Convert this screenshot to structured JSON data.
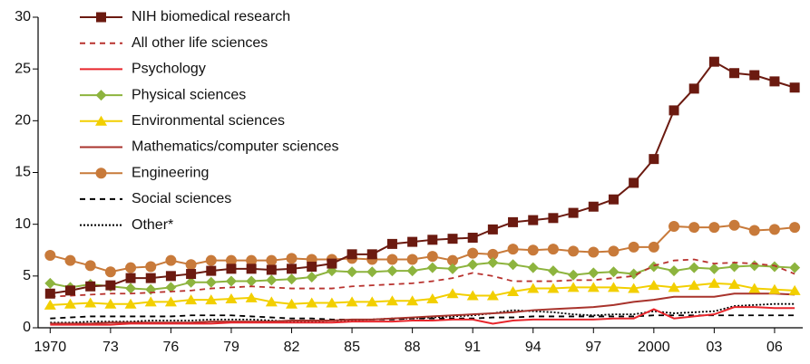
{
  "chart_data": {
    "type": "line",
    "x": [
      1970,
      1971,
      1972,
      1973,
      1974,
      1975,
      1976,
      1977,
      1978,
      1979,
      1980,
      1981,
      1982,
      1983,
      1984,
      1985,
      1986,
      1987,
      1988,
      1989,
      1990,
      1991,
      1992,
      1993,
      1994,
      1995,
      1996,
      1997,
      1998,
      1999,
      2000,
      2001,
      2002,
      2003,
      2004,
      2005,
      2006,
      2007
    ],
    "xlim": [
      1969.4,
      2007.4
    ],
    "xticks": [
      1970,
      {
        "value": 1973,
        "label": "73"
      },
      {
        "value": 1976,
        "label": "76"
      },
      {
        "value": 1979,
        "label": "79"
      },
      {
        "value": 1982,
        "label": "82"
      },
      {
        "value": 1985,
        "label": "85"
      },
      {
        "value": 1988,
        "label": "88"
      },
      {
        "value": 1991,
        "label": "91"
      },
      {
        "value": 1994,
        "label": "94"
      },
      {
        "value": 1997,
        "label": "97"
      },
      2000,
      {
        "value": 2003,
        "label": "03"
      },
      {
        "value": 2006,
        "label": "06"
      }
    ],
    "ylim": [
      0,
      30
    ],
    "yticks": [
      0,
      5,
      10,
      15,
      20,
      25,
      30
    ],
    "legend": "top-left",
    "series": [
      {
        "name": "NIH biomedical research",
        "color": "#6b1a10",
        "dash": "solid",
        "marker": "square",
        "values": [
          3.3,
          3.6,
          4.0,
          4.1,
          4.8,
          4.8,
          5.0,
          5.2,
          5.5,
          5.7,
          5.7,
          5.6,
          5.7,
          5.9,
          6.2,
          7.1,
          7.1,
          8.1,
          8.3,
          8.5,
          8.6,
          8.7,
          9.5,
          10.2,
          10.4,
          10.6,
          11.1,
          11.7,
          12.4,
          14.0,
          16.3,
          21.0,
          23.1,
          25.7,
          24.6,
          24.4,
          23.8,
          23.2
        ]
      },
      {
        "name": "All other life sciences",
        "color": "#b8322e",
        "dash": "dashed",
        "marker": "none",
        "values": [
          3.0,
          3.1,
          3.2,
          3.3,
          3.3,
          3.4,
          3.5,
          3.6,
          3.8,
          3.9,
          4.0,
          3.9,
          3.8,
          3.8,
          3.8,
          4.0,
          4.1,
          4.2,
          4.3,
          4.5,
          4.8,
          5.3,
          5.0,
          4.5,
          4.5,
          4.5,
          4.6,
          4.6,
          4.8,
          5.0,
          6.0,
          6.5,
          6.6,
          6.2,
          6.3,
          6.2,
          6.0,
          5.2
        ]
      },
      {
        "name": "Psychology",
        "color": "#e8262c",
        "dash": "solid",
        "marker": "none",
        "values": [
          0.3,
          0.3,
          0.3,
          0.3,
          0.4,
          0.4,
          0.4,
          0.4,
          0.4,
          0.5,
          0.5,
          0.5,
          0.5,
          0.5,
          0.5,
          0.6,
          0.6,
          0.6,
          0.7,
          0.7,
          0.8,
          0.8,
          0.4,
          0.7,
          0.8,
          0.8,
          0.8,
          0.8,
          0.9,
          0.9,
          1.8,
          0.9,
          1.1,
          1.3,
          2.0,
          2.0,
          1.9,
          1.9
        ]
      },
      {
        "name": "Physical sciences",
        "color": "#8db43e",
        "dash": "solid",
        "marker": "diamond",
        "values": [
          4.3,
          3.9,
          4.2,
          4.0,
          3.8,
          3.7,
          3.9,
          4.4,
          4.4,
          4.5,
          4.5,
          4.6,
          4.7,
          4.9,
          5.5,
          5.4,
          5.4,
          5.5,
          5.5,
          5.8,
          5.7,
          6.1,
          6.3,
          6.1,
          5.8,
          5.5,
          5.1,
          5.3,
          5.4,
          5.2,
          5.9,
          5.5,
          5.8,
          5.7,
          5.9,
          6.0,
          5.9,
          5.8
        ]
      },
      {
        "name": "Environmental sciences",
        "color": "#f2cf00",
        "dash": "solid",
        "marker": "triangle",
        "values": [
          2.2,
          2.3,
          2.4,
          2.3,
          2.3,
          2.5,
          2.5,
          2.7,
          2.7,
          2.8,
          2.9,
          2.5,
          2.3,
          2.4,
          2.4,
          2.5,
          2.5,
          2.6,
          2.6,
          2.8,
          3.3,
          3.1,
          3.1,
          3.5,
          3.8,
          3.8,
          3.9,
          3.9,
          3.9,
          3.8,
          4.1,
          3.9,
          4.1,
          4.3,
          4.2,
          3.8,
          3.7,
          3.6
        ]
      },
      {
        "name": "Mathematics/computer sciences",
        "color": "#a8332c",
        "dash": "solid",
        "marker": "none",
        "values": [
          0.4,
          0.4,
          0.4,
          0.5,
          0.5,
          0.5,
          0.5,
          0.5,
          0.6,
          0.6,
          0.6,
          0.6,
          0.7,
          0.7,
          0.7,
          0.8,
          0.8,
          0.9,
          1.0,
          1.1,
          1.2,
          1.3,
          1.4,
          1.5,
          1.7,
          1.8,
          1.9,
          2.0,
          2.2,
          2.5,
          2.7,
          3.0,
          3.0,
          3.0,
          3.3,
          3.3,
          3.3,
          3.2
        ]
      },
      {
        "name": "Engineering",
        "color": "#c87a3a",
        "dash": "solid",
        "marker": "circle",
        "values": [
          7.0,
          6.5,
          6.0,
          5.4,
          5.8,
          5.9,
          6.5,
          6.1,
          6.5,
          6.5,
          6.5,
          6.5,
          6.7,
          6.6,
          6.6,
          6.7,
          6.6,
          6.6,
          6.6,
          6.9,
          6.5,
          7.2,
          7.1,
          7.6,
          7.5,
          7.6,
          7.4,
          7.3,
          7.4,
          7.8,
          7.8,
          9.8,
          9.7,
          9.7,
          9.9,
          9.4,
          9.5,
          9.7
        ]
      },
      {
        "name": "Social sciences",
        "color": "#000000",
        "dash": "dashed",
        "marker": "none",
        "values": [
          0.9,
          1.0,
          1.1,
          1.1,
          1.1,
          1.1,
          1.1,
          1.2,
          1.2,
          1.2,
          1.1,
          1.0,
          0.9,
          0.9,
          0.8,
          0.8,
          0.8,
          0.8,
          0.9,
          0.9,
          0.9,
          0.9,
          1.0,
          1.0,
          1.1,
          1.1,
          1.1,
          1.1,
          1.1,
          1.1,
          1.2,
          1.2,
          1.2,
          1.2,
          1.2,
          1.2,
          1.2,
          1.2
        ]
      },
      {
        "name": "Other*",
        "color": "#000000",
        "dash": "dotted",
        "marker": "none",
        "values": [
          0.5,
          0.5,
          0.6,
          0.6,
          0.6,
          0.7,
          0.7,
          0.7,
          0.8,
          0.8,
          0.8,
          0.7,
          0.6,
          0.6,
          0.7,
          0.7,
          0.8,
          0.9,
          0.9,
          1.0,
          1.1,
          1.2,
          1.4,
          1.7,
          1.6,
          1.5,
          1.3,
          1.2,
          1.3,
          1.3,
          1.6,
          1.4,
          1.5,
          1.6,
          2.1,
          2.2,
          2.3,
          2.3
        ]
      }
    ]
  }
}
